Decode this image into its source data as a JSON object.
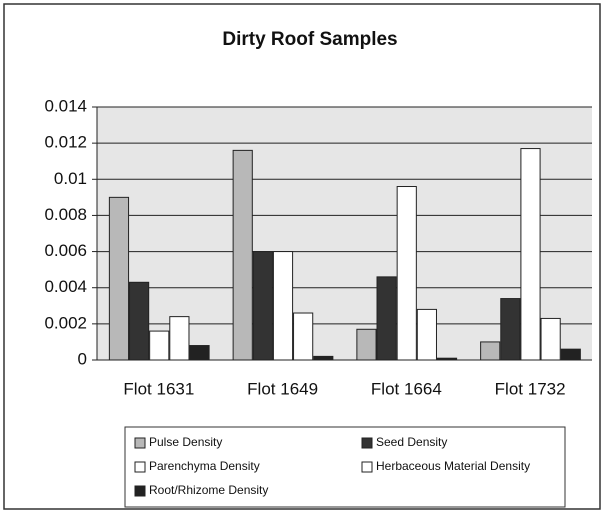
{
  "chart_data": {
    "type": "bar",
    "title": "Dirty Roof Samples",
    "categories": [
      "Flot 1631",
      "Flot 1649",
      "Flot 1664",
      "Flot 1732"
    ],
    "series": [
      {
        "name": "Pulse Density",
        "color": "#b8b8b8",
        "values": [
          0.009,
          0.0116,
          0.0017,
          0.001
        ]
      },
      {
        "name": "Seed Density",
        "color": "#333333",
        "values": [
          0.0043,
          0.006,
          0.0046,
          0.0034
        ]
      },
      {
        "name": "Parenchyma Density",
        "color": "#ffffff",
        "values": [
          0.0016,
          0.006,
          0.0096,
          0.0117
        ]
      },
      {
        "name": "Herbaceous Material Density",
        "color": "#ffffff",
        "values": [
          0.0024,
          0.0026,
          0.0028,
          0.0023
        ]
      },
      {
        "name": "Root/Rhizome Density",
        "color": "#222222",
        "values": [
          0.0008,
          0.0002,
          0.0001,
          0.0006
        ]
      }
    ],
    "ylim": [
      0,
      0.014
    ],
    "yticks": [
      0,
      0.002,
      0.004,
      0.006,
      0.008,
      0.01,
      0.012,
      0.014
    ],
    "grid": true
  }
}
